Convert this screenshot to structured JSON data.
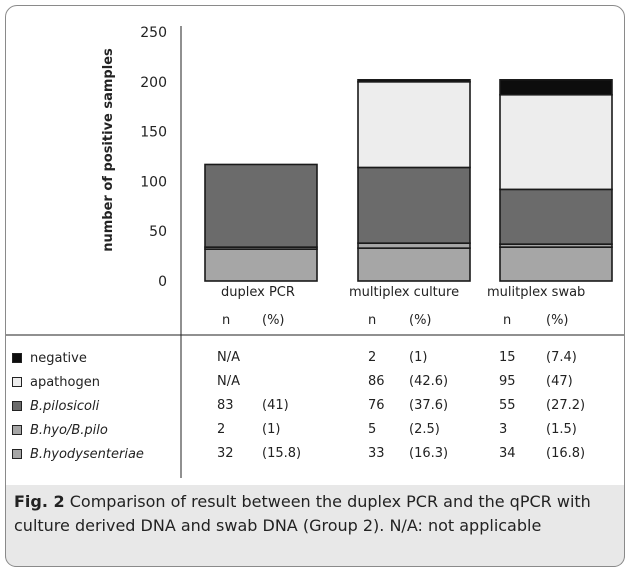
{
  "chart_data": {
    "type": "bar",
    "stacked": true,
    "ylabel": "number of positive samples",
    "ylim": [
      0,
      250
    ],
    "yticks": [
      0,
      50,
      100,
      150,
      200,
      250
    ],
    "categories": [
      "duplex PCR",
      "multiplex culture",
      "mulitplex swab"
    ],
    "series": [
      {
        "name": "B.hyodysenteriae",
        "color": "#a6a6a6",
        "values": [
          32,
          33,
          34
        ]
      },
      {
        "name": "B.hyo/B.pilo",
        "color": "#a6a6a6",
        "values": [
          2,
          5,
          3
        ]
      },
      {
        "name": "B.pilosicoli",
        "color": "#6b6b6b",
        "values": [
          83,
          76,
          55
        ]
      },
      {
        "name": "apathogen",
        "color": "#ededed",
        "values": [
          0,
          86,
          95
        ]
      },
      {
        "name": "negative",
        "color": "#0d0d0d",
        "values": [
          0,
          2,
          15
        ]
      }
    ]
  },
  "table": {
    "headers": [
      "duplex PCR",
      "multiplex culture",
      "mulitplex swab"
    ],
    "subheaders": [
      "n",
      "(%)"
    ],
    "rows": [
      {
        "label": "negative",
        "color": "#0d0d0d",
        "italic": false,
        "cells": [
          [
            "N/A",
            ""
          ],
          [
            "2",
            "(1)"
          ],
          [
            "15",
            "(7.4)"
          ]
        ]
      },
      {
        "label": "apathogen",
        "color": "#ededed",
        "italic": false,
        "cells": [
          [
            "N/A",
            ""
          ],
          [
            "86",
            "(42.6)"
          ],
          [
            "95",
            "(47)"
          ]
        ]
      },
      {
        "label": "B.pilosicoli",
        "color": "#6b6b6b",
        "italic": true,
        "cells": [
          [
            "83",
            "(41)"
          ],
          [
            "76",
            "(37.6)"
          ],
          [
            "55",
            "(27.2)"
          ]
        ]
      },
      {
        "label": "B.hyo/B.pilo",
        "color": "#a6a6a6",
        "italic": true,
        "cells": [
          [
            "2",
            "(1)"
          ],
          [
            "5",
            "(2.5)"
          ],
          [
            "3",
            "(1.5)"
          ]
        ]
      },
      {
        "label": "B.hyodysenteriae",
        "color": "#a6a6a6",
        "italic": true,
        "cells": [
          [
            "32",
            "(15.8)"
          ],
          [
            "33",
            "(16.3)"
          ],
          [
            "34",
            "(16.8)"
          ]
        ]
      }
    ]
  },
  "caption": {
    "label": "Fig. 2",
    "text": " Comparison of result between the duplex PCR and the qPCR with culture derived DNA and swab DNA (Group 2). N/A: not applicable"
  }
}
